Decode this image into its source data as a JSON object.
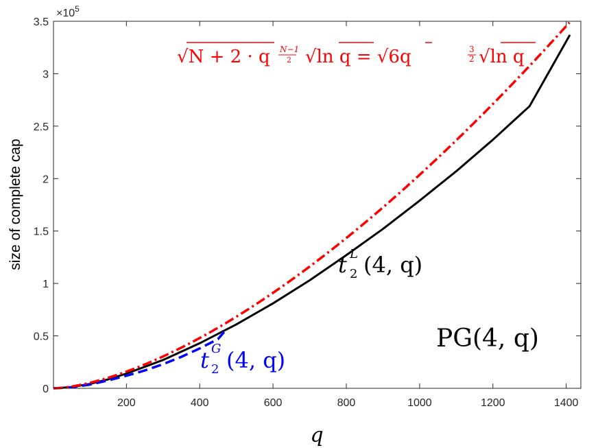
{
  "chart_data": {
    "type": "line",
    "xlabel": "q",
    "ylabel": "size of complete cap",
    "xlim": [
      1,
      1440
    ],
    "ylim": [
      0,
      350000
    ],
    "y_exponent_label": "×10",
    "y_exponent_power": "5",
    "x_ticks": [
      200,
      400,
      600,
      800,
      1000,
      1200,
      1400
    ],
    "y_ticks": [
      0,
      50000,
      100000,
      150000,
      200000,
      250000,
      300000,
      350000
    ],
    "y_tick_labels": [
      "0",
      "0.5",
      "1",
      "1.5",
      "2",
      "2.5",
      "3",
      "3.5"
    ],
    "grid": false,
    "box": true,
    "series": [
      {
        "name": "t2L(4,q)",
        "color": "#000000",
        "style": "solid",
        "x": [
          1,
          50,
          100,
          150,
          200,
          300,
          400,
          500,
          600,
          700,
          800,
          900,
          1000,
          1100,
          1200,
          1300,
          1410
        ],
        "y": [
          0,
          1200,
          4200,
          8500,
          14000,
          27000,
          43000,
          61000,
          81000,
          103000,
          127000,
          152000,
          179000,
          207000,
          237000,
          269000,
          337000
        ]
      },
      {
        "name": "t2G(4,q)",
        "color": "#0000ff",
        "style": "dashed",
        "x": [
          1,
          50,
          100,
          150,
          200,
          250,
          300,
          350,
          400,
          450,
          470
        ],
        "y": [
          0,
          1000,
          3500,
          7500,
          12000,
          17000,
          23000,
          30000,
          38000,
          47000,
          55000
        ]
      },
      {
        "name": "sqrt(6) q^(3/2) sqrt(ln q)",
        "color": "#ff0000",
        "style": "dashdot",
        "fn": "sqrt6_q32_sqrtlnq",
        "x_range": [
          1,
          1412
        ]
      }
    ],
    "annotations": {
      "red_formula_left": "√N + 2 · q",
      "red_formula_exp": "N−1",
      "red_formula_exp_den": "2",
      "red_formula_mid": "√ln q = √6q",
      "red_formula_exp2_num": "3",
      "red_formula_exp2_den": "2",
      "red_formula_right": "√ln q",
      "black_label_base": "t",
      "black_label_sup": "L",
      "black_label_sub": "2",
      "black_label_args": "(4, q)",
      "blue_label_base": "t",
      "blue_label_sup": "G",
      "blue_label_sub": "2",
      "blue_label_args": "(4, q)",
      "space_label": "PG(4, q)"
    },
    "colors": {
      "accent_red": "#ff0000",
      "accent_blue": "#0000ff",
      "black": "#000000"
    }
  }
}
